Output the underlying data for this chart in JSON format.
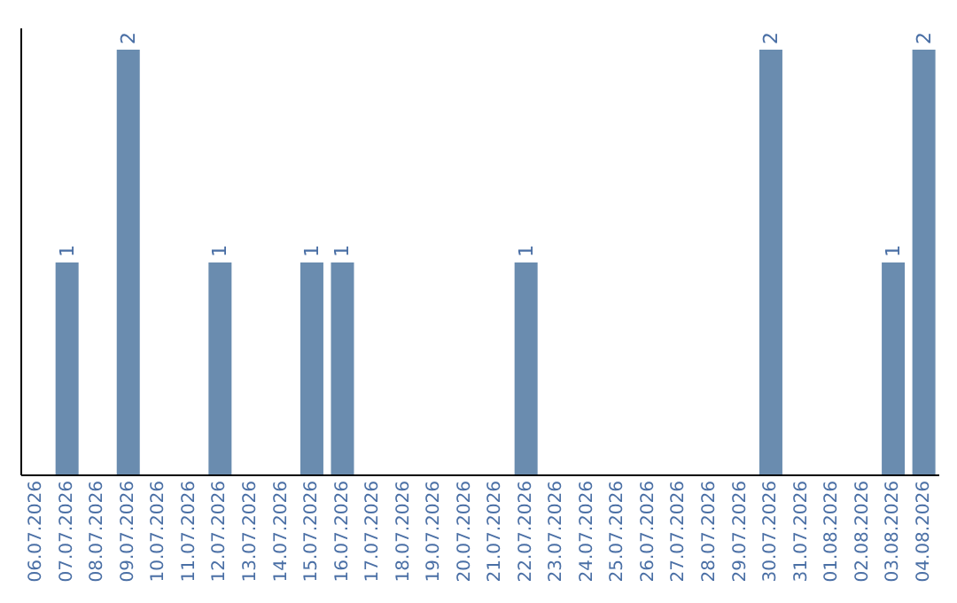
{
  "chart_data": {
    "type": "bar",
    "categories": [
      "06.07.2026",
      "07.07.2026",
      "08.07.2026",
      "09.07.2026",
      "10.07.2026",
      "11.07.2026",
      "12.07.2026",
      "13.07.2026",
      "14.07.2026",
      "15.07.2026",
      "16.07.2026",
      "17.07.2026",
      "18.07.2026",
      "19.07.2026",
      "20.07.2026",
      "21.07.2026",
      "22.07.2026",
      "23.07.2026",
      "24.07.2026",
      "25.07.2026",
      "26.07.2026",
      "27.07.2026",
      "28.07.2026",
      "29.07.2026",
      "30.07.2026",
      "31.07.2026",
      "01.08.2026",
      "02.08.2026",
      "03.08.2026",
      "04.08.2026"
    ],
    "values": [
      0,
      1,
      0,
      2,
      0,
      0,
      1,
      0,
      0,
      1,
      1,
      0,
      0,
      0,
      0,
      0,
      1,
      0,
      0,
      0,
      0,
      0,
      0,
      0,
      2,
      0,
      0,
      0,
      1,
      2
    ],
    "value_labels": [
      null,
      "1",
      null,
      "2",
      null,
      null,
      "1",
      null,
      null,
      "1",
      "1",
      null,
      null,
      null,
      null,
      null,
      "1",
      null,
      null,
      null,
      null,
      null,
      null,
      null,
      "2",
      null,
      null,
      null,
      "1",
      "2"
    ],
    "color": "#6a8caf",
    "tick_labels": "x",
    "grid": false,
    "legend": false
  }
}
